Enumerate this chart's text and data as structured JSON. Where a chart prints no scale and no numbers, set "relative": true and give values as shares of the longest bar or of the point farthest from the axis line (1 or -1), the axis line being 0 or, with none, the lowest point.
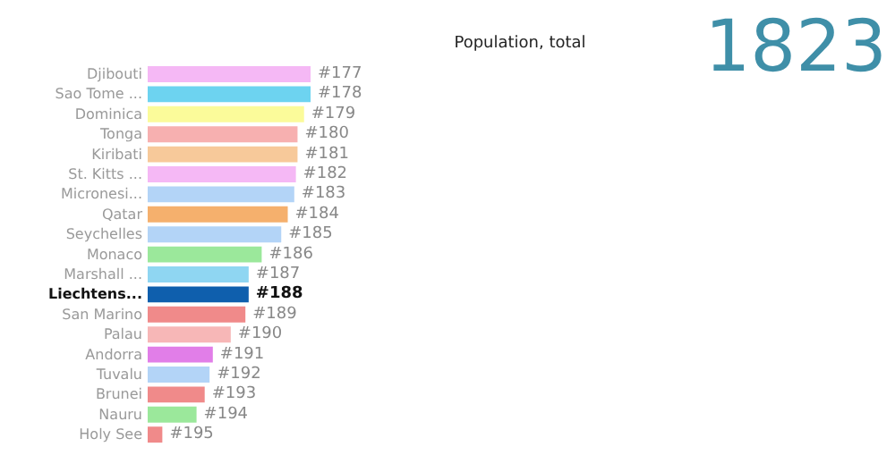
{
  "chart_data": {
    "type": "bar",
    "orientation": "horizontal",
    "relative": true,
    "title": "Population, total",
    "categories": [
      "Djibouti",
      "Sao Tome ...",
      "Dominica",
      "Tonga",
      "Kiribati",
      "St. Kitts ...",
      "Micronesi...",
      "Qatar",
      "Seychelles",
      "Monaco",
      "Marshall ...",
      "Liechtens...",
      "San Marino",
      "Palau",
      "Andorra",
      "Tuvalu",
      "Brunei",
      "Nauru",
      "Holy See"
    ],
    "values": [
      1.0,
      1.0,
      0.96,
      0.92,
      0.92,
      0.91,
      0.9,
      0.86,
      0.82,
      0.7,
      0.62,
      0.62,
      0.6,
      0.51,
      0.4,
      0.38,
      0.35,
      0.3,
      0.09
    ],
    "colors": [
      "#f5b8f5",
      "#6dd3f0",
      "#fbfb9a",
      "#f7b0b0",
      "#f7c99a",
      "#f5b8f5",
      "#b3d4f7",
      "#f5b06d",
      "#b3d4f7",
      "#9be89b",
      "#8fd6f2",
      "#0f5fad",
      "#f08a8a",
      "#f7b7b7",
      "#e17ee8",
      "#b3d4f7",
      "#f08a8a",
      "#9be89b",
      "#f08a8a"
    ],
    "annotations": [
      "1823",
      {
        "text": "#177",
        "x": 1.0,
        "y": "Djibouti"
      },
      {
        "text": "#178",
        "x": 1.0,
        "y": "Sao Tome ..."
      },
      {
        "text": "#179",
        "x": 0.96,
        "y": "Dominica"
      },
      {
        "text": "#180",
        "x": 0.92,
        "y": "Tonga"
      },
      {
        "text": "#181",
        "x": 0.92,
        "y": "Kiribati"
      },
      {
        "text": "#182",
        "x": 0.91,
        "y": "St. Kitts ..."
      },
      {
        "text": "#183",
        "x": 0.9,
        "y": "Micronesi..."
      },
      {
        "text": "#184",
        "x": 0.86,
        "y": "Qatar"
      },
      {
        "text": "#185",
        "x": 0.82,
        "y": "Seychelles"
      },
      {
        "text": "#186",
        "x": 0.7,
        "y": "Monaco"
      },
      {
        "text": "#187",
        "x": 0.62,
        "y": "Marshall ..."
      },
      {
        "text": "#188",
        "x": 0.62,
        "y": "Liechtens..."
      },
      {
        "text": "#189",
        "x": 0.6,
        "y": "San Marino"
      },
      {
        "text": "#190",
        "x": 0.51,
        "y": "Palau"
      },
      {
        "text": "#191",
        "x": 0.4,
        "y": "Andorra"
      },
      {
        "text": "#192",
        "x": 0.38,
        "y": "Tuvalu"
      },
      {
        "text": "#193",
        "x": 0.35,
        "y": "Brunei"
      },
      {
        "text": "#194",
        "x": 0.3,
        "y": "Nauru"
      },
      {
        "text": "#195",
        "x": 0.09,
        "y": "Holy See"
      }
    ]
  }
}
